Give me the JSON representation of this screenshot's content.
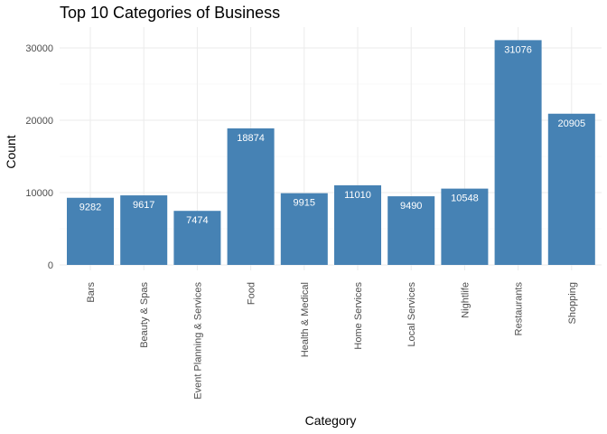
{
  "chart_data": {
    "type": "bar",
    "title": "Top 10 Categories of Business",
    "xlabel": "Category",
    "ylabel": "Count",
    "categories": [
      "Bars",
      "Beauty & Spas",
      "Event Planning & Services",
      "Food",
      "Health & Medical",
      "Home Services",
      "Local Services",
      "Nightlife",
      "Restaurants",
      "Shopping"
    ],
    "values": [
      9282,
      9617,
      7474,
      18874,
      9915,
      11010,
      9490,
      10548,
      31076,
      20905
    ],
    "value_labels": [
      "9282",
      "9617",
      "7474",
      "18874",
      "9915",
      "11010",
      "9490",
      "10548",
      "31076",
      "20905"
    ],
    "y_ticks": [
      0,
      10000,
      20000,
      30000
    ],
    "y_tick_labels": [
      "0",
      "10000",
      "20000",
      "30000"
    ],
    "ylim": [
      0,
      32630
    ],
    "bar_color": "#4682B4",
    "grid": true,
    "legend": "none"
  }
}
